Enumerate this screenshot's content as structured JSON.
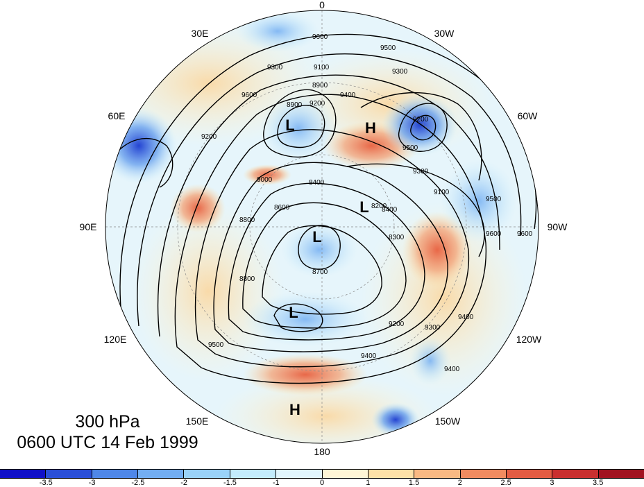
{
  "title": {
    "level": "300 hPa",
    "time": "0600 UTC 14 Feb 1999"
  },
  "projection": "north-polar-stereographic",
  "longitude_labels": [
    "0",
    "30W",
    "60W",
    "90W",
    "120W",
    "150W",
    "180",
    "150E",
    "120E",
    "90E",
    "60E",
    "30E"
  ],
  "contour_labels": [
    "9600",
    "9500",
    "9300",
    "9100",
    "8900",
    "9200",
    "9400",
    "9300",
    "9200",
    "9500",
    "9600",
    "9300",
    "9200",
    "9400",
    "9100",
    "8900",
    "9600",
    "9500",
    "9400",
    "9300",
    "9200",
    "8400",
    "8600",
    "8800",
    "9000",
    "8200",
    "8300",
    "8400",
    "8700",
    "8800",
    "9400",
    "9500",
    "9600"
  ],
  "pressure_centers": [
    {
      "type": "L",
      "label": "L"
    },
    {
      "type": "H",
      "label": "H"
    },
    {
      "type": "L",
      "label": "L"
    },
    {
      "type": "L",
      "label": "L"
    },
    {
      "type": "L",
      "label": "L"
    },
    {
      "type": "H",
      "label": "H"
    }
  ],
  "colorbar": {
    "colors": [
      "#1010c8",
      "#2a4fd8",
      "#4f87e8",
      "#73aef2",
      "#9ad2f8",
      "#c4ecfc",
      "#e2f6fd",
      "#fff6d6",
      "#fde1a8",
      "#f9b983",
      "#f08b60",
      "#e35c43",
      "#c92f2f",
      "#a11220"
    ],
    "tick_labels": [
      "-3.5",
      "-3",
      "-2.5",
      "-2",
      "-1.5",
      "-1",
      "0",
      "1",
      "1.5",
      "2",
      "2.5",
      "3",
      "3.5"
    ],
    "tick_index": [
      1,
      2,
      3,
      4,
      5,
      6,
      7,
      8,
      9,
      10,
      11,
      12,
      13
    ]
  },
  "colors": {
    "background": "#ffffff",
    "contour_line": "#000000",
    "grid_line": "#888888",
    "blue_anomaly": "#4f87e8",
    "red_anomaly": "#e35c43"
  }
}
